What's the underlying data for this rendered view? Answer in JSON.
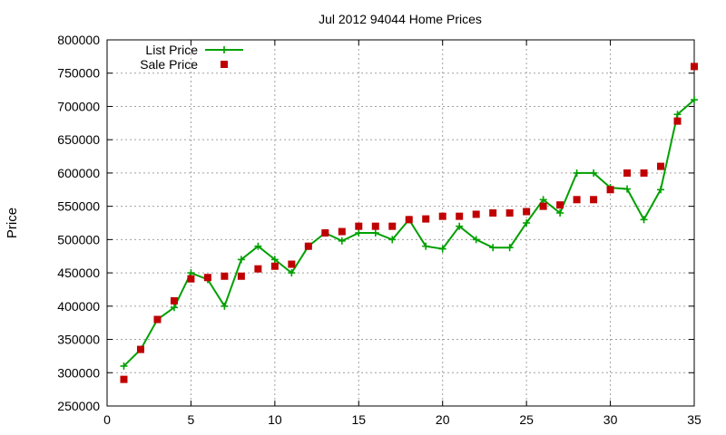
{
  "chart_data": {
    "type": "line",
    "title": "Jul 2012 94044 Home Prices",
    "xlabel": "",
    "ylabel": "Price",
    "xlim": [
      0,
      35
    ],
    "ylim": [
      250000,
      800000
    ],
    "x_ticks": [
      "0",
      "5",
      "10",
      "15",
      "20",
      "25",
      "30",
      "35"
    ],
    "y_ticks": [
      "250000",
      "300000",
      "350000",
      "400000",
      "450000",
      "500000",
      "550000",
      "600000",
      "650000",
      "700000",
      "750000",
      "800000"
    ],
    "grid": true,
    "legend": "top-left",
    "series": [
      {
        "name": "List Price",
        "style": "line-with-plus-markers",
        "color": "#00a000",
        "x": [
          1,
          2,
          3,
          4,
          5,
          6,
          7,
          8,
          9,
          10,
          11,
          12,
          13,
          14,
          15,
          16,
          17,
          18,
          19,
          20,
          21,
          22,
          23,
          24,
          25,
          26,
          27,
          28,
          29,
          30,
          31,
          32,
          33,
          34,
          35
        ],
        "y": [
          310000,
          335000,
          380000,
          398000,
          450000,
          440000,
          400000,
          470000,
          490000,
          470000,
          450000,
          490000,
          510000,
          498000,
          510000,
          510000,
          500000,
          530000,
          490000,
          486000,
          520000,
          500000,
          488000,
          488000,
          525000,
          560000,
          540000,
          600000,
          600000,
          578000,
          576000,
          530000,
          575000,
          688000,
          710000
        ]
      },
      {
        "name": "Sale Price",
        "style": "square-markers",
        "color": "#c00000",
        "x": [
          1,
          2,
          3,
          4,
          5,
          6,
          7,
          8,
          9,
          10,
          11,
          12,
          13,
          14,
          15,
          16,
          17,
          18,
          19,
          20,
          21,
          22,
          23,
          24,
          25,
          26,
          27,
          28,
          29,
          30,
          31,
          32,
          33,
          34,
          35
        ],
        "y": [
          290000,
          335000,
          380000,
          408000,
          441000,
          443000,
          445000,
          445000,
          456000,
          460000,
          463000,
          490000,
          510000,
          512000,
          520000,
          520000,
          520000,
          530000,
          531000,
          535000,
          535000,
          538000,
          540000,
          540000,
          542000,
          550000,
          552000,
          560000,
          560000,
          575000,
          600000,
          600000,
          610000,
          678000,
          760000
        ]
      }
    ]
  }
}
